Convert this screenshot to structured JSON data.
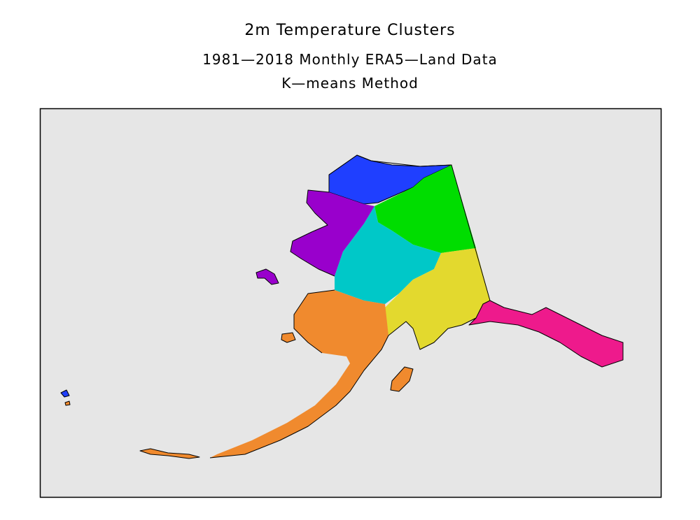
{
  "header": {
    "title": "2m Temperature Clusters",
    "subtitle": "1981—2018 Monthly ERA5—Land Data",
    "method": "K—means Method"
  }
}
